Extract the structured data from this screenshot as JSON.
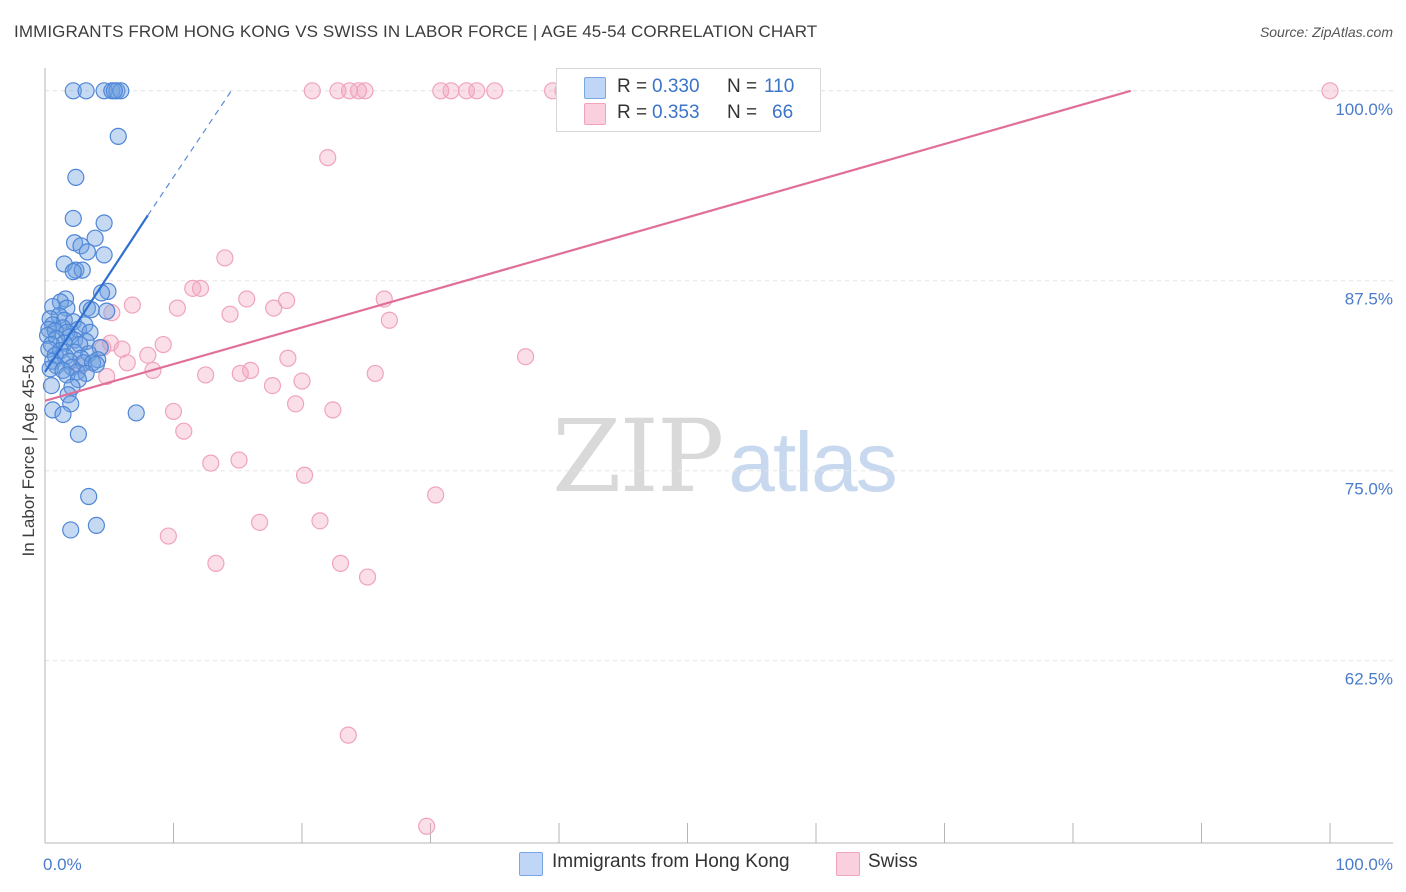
{
  "title": "IMMIGRANTS FROM HONG KONG VS SWISS IN LABOR FORCE | AGE 45-54 CORRELATION CHART",
  "source": "Source: ZipAtlas.com",
  "watermark": {
    "zip": "ZIP",
    "atlas": "atlas"
  },
  "legend": {
    "rows": [
      {
        "r_label": "R =",
        "r_value": "0.330",
        "n_label": "N =",
        "n_value": "110"
      },
      {
        "r_label": "R =",
        "r_value": "0.353",
        "n_label": "N =",
        "n_value": "66"
      }
    ]
  },
  "bottom_legend": {
    "series1": "Immigrants from Hong Kong",
    "series2": "Swiss"
  },
  "chart_data": {
    "type": "scatter",
    "title": "IMMIGRANTS FROM HONG KONG VS SWISS IN LABOR FORCE | AGE 45-54 CORRELATION CHART",
    "xlabel": "",
    "ylabel": "In Labor Force | Age 45-54",
    "xlim": [
      0,
      100
    ],
    "ylim": [
      50.5,
      101.5
    ],
    "x_tick_labels": [
      "0.0%",
      "100.0%"
    ],
    "y_ticks": [
      62.5,
      75.0,
      87.5,
      100.0
    ],
    "y_tick_labels": [
      "62.5%",
      "75.0%",
      "87.5%",
      "100.0%"
    ],
    "grid": true,
    "legend_position": "top-center",
    "colors": {
      "hongkong": "#6f9fe0",
      "swiss": "#f0a3bd",
      "hongkong_line": "#2f6fd0",
      "swiss_line": "#e06f9a"
    },
    "series": [
      {
        "name": "Immigrants from Hong Kong",
        "r": 0.33,
        "n": 110,
        "trend": {
          "x": [
            0,
            8.0
          ],
          "y": [
            81.5,
            91.8
          ],
          "dashed_to": [
            14.5,
            100.0
          ]
        },
        "points": [
          [
            2.2,
            100
          ],
          [
            3.2,
            100
          ],
          [
            4.6,
            100
          ],
          [
            5.2,
            100
          ],
          [
            5.6,
            100
          ],
          [
            5.9,
            100
          ],
          [
            5.4,
            100
          ],
          [
            5.7,
            97.0
          ],
          [
            2.4,
            94.3
          ],
          [
            2.2,
            91.6
          ],
          [
            4.6,
            91.3
          ],
          [
            3.9,
            90.3
          ],
          [
            2.3,
            90.0
          ],
          [
            2.8,
            89.8
          ],
          [
            3.3,
            89.4
          ],
          [
            4.6,
            89.2
          ],
          [
            1.5,
            88.6
          ],
          [
            2.4,
            88.2
          ],
          [
            2.9,
            88.2
          ],
          [
            2.2,
            88.1
          ],
          [
            4.9,
            86.8
          ],
          [
            4.4,
            86.7
          ],
          [
            1.6,
            86.3
          ],
          [
            1.2,
            86.1
          ],
          [
            0.6,
            85.8
          ],
          [
            1.7,
            85.7
          ],
          [
            3.3,
            85.7
          ],
          [
            3.6,
            85.6
          ],
          [
            1.1,
            85.2
          ],
          [
            4.8,
            85.5
          ],
          [
            0.4,
            85.0
          ],
          [
            1.5,
            84.9
          ],
          [
            2.2,
            84.8
          ],
          [
            0.6,
            84.6
          ],
          [
            3.1,
            84.6
          ],
          [
            1.4,
            84.4
          ],
          [
            0.3,
            84.3
          ],
          [
            2.6,
            84.3
          ],
          [
            0.8,
            84.2
          ],
          [
            1.7,
            84.1
          ],
          [
            3.5,
            84.1
          ],
          [
            0.2,
            83.9
          ],
          [
            1.9,
            83.8
          ],
          [
            0.9,
            83.7
          ],
          [
            2.3,
            83.6
          ],
          [
            3.2,
            83.5
          ],
          [
            1.5,
            83.4
          ],
          [
            0.5,
            83.3
          ],
          [
            2.7,
            83.3
          ],
          [
            4.3,
            83.1
          ],
          [
            0.3,
            83.0
          ],
          [
            1.2,
            82.9
          ],
          [
            2.3,
            82.8
          ],
          [
            3.4,
            82.7
          ],
          [
            0.8,
            82.6
          ],
          [
            1.6,
            82.5
          ],
          [
            2.8,
            82.4
          ],
          [
            4.1,
            82.3
          ],
          [
            0.6,
            82.2
          ],
          [
            1.9,
            82.2
          ],
          [
            3.0,
            82.1
          ],
          [
            3.7,
            82.1
          ],
          [
            4.0,
            82.0
          ],
          [
            0.9,
            81.9
          ],
          [
            2.1,
            81.8
          ],
          [
            0.4,
            81.7
          ],
          [
            1.4,
            81.6
          ],
          [
            2.5,
            81.5
          ],
          [
            3.2,
            81.4
          ],
          [
            1.7,
            81.3
          ],
          [
            2.6,
            81.0
          ],
          [
            0.5,
            80.6
          ],
          [
            2.1,
            80.5
          ],
          [
            1.8,
            80.0
          ],
          [
            2.0,
            79.4
          ],
          [
            0.6,
            79.0
          ],
          [
            1.4,
            78.7
          ],
          [
            7.1,
            78.8
          ],
          [
            2.6,
            77.4
          ],
          [
            3.4,
            73.3
          ],
          [
            4.0,
            71.4
          ],
          [
            2.0,
            71.1
          ]
        ]
      },
      {
        "name": "Swiss",
        "r": 0.353,
        "n": 66,
        "trend": {
          "x": [
            0,
            84.5
          ],
          "y": [
            79.6,
            100.0
          ]
        },
        "points": [
          [
            20.8,
            100
          ],
          [
            22.8,
            100
          ],
          [
            23.7,
            100
          ],
          [
            24.4,
            100
          ],
          [
            24.9,
            100
          ],
          [
            30.8,
            100
          ],
          [
            31.6,
            100
          ],
          [
            32.8,
            100
          ],
          [
            33.6,
            100
          ],
          [
            35.0,
            100
          ],
          [
            39.5,
            100
          ],
          [
            40.3,
            100
          ],
          [
            100,
            100
          ],
          [
            22.0,
            95.6
          ],
          [
            14.0,
            89.0
          ],
          [
            11.5,
            87.0
          ],
          [
            12.1,
            87.0
          ],
          [
            15.7,
            86.3
          ],
          [
            18.8,
            86.2
          ],
          [
            26.4,
            86.3
          ],
          [
            6.8,
            85.9
          ],
          [
            10.3,
            85.7
          ],
          [
            17.8,
            85.7
          ],
          [
            14.4,
            85.3
          ],
          [
            5.2,
            85.4
          ],
          [
            26.8,
            84.9
          ],
          [
            9.2,
            83.3
          ],
          [
            5.1,
            83.4
          ],
          [
            4.5,
            83.1
          ],
          [
            6.0,
            83.0
          ],
          [
            8.0,
            82.6
          ],
          [
            18.9,
            82.4
          ],
          [
            37.4,
            82.5
          ],
          [
            6.4,
            82.1
          ],
          [
            2.8,
            81.9
          ],
          [
            8.4,
            81.6
          ],
          [
            16.0,
            81.6
          ],
          [
            15.2,
            81.4
          ],
          [
            12.5,
            81.3
          ],
          [
            25.7,
            81.4
          ],
          [
            4.8,
            81.2
          ],
          [
            20.0,
            80.9
          ],
          [
            17.7,
            80.6
          ],
          [
            19.5,
            79.4
          ],
          [
            22.4,
            79.0
          ],
          [
            10.0,
            78.9
          ],
          [
            10.8,
            77.6
          ],
          [
            15.1,
            75.7
          ],
          [
            12.9,
            75.5
          ],
          [
            20.2,
            74.7
          ],
          [
            30.4,
            73.4
          ],
          [
            21.4,
            71.7
          ],
          [
            16.7,
            71.6
          ],
          [
            9.6,
            70.7
          ],
          [
            13.3,
            68.9
          ],
          [
            23.0,
            68.9
          ],
          [
            25.1,
            68.0
          ],
          [
            23.6,
            57.6
          ],
          [
            29.7,
            51.6
          ]
        ]
      }
    ]
  }
}
